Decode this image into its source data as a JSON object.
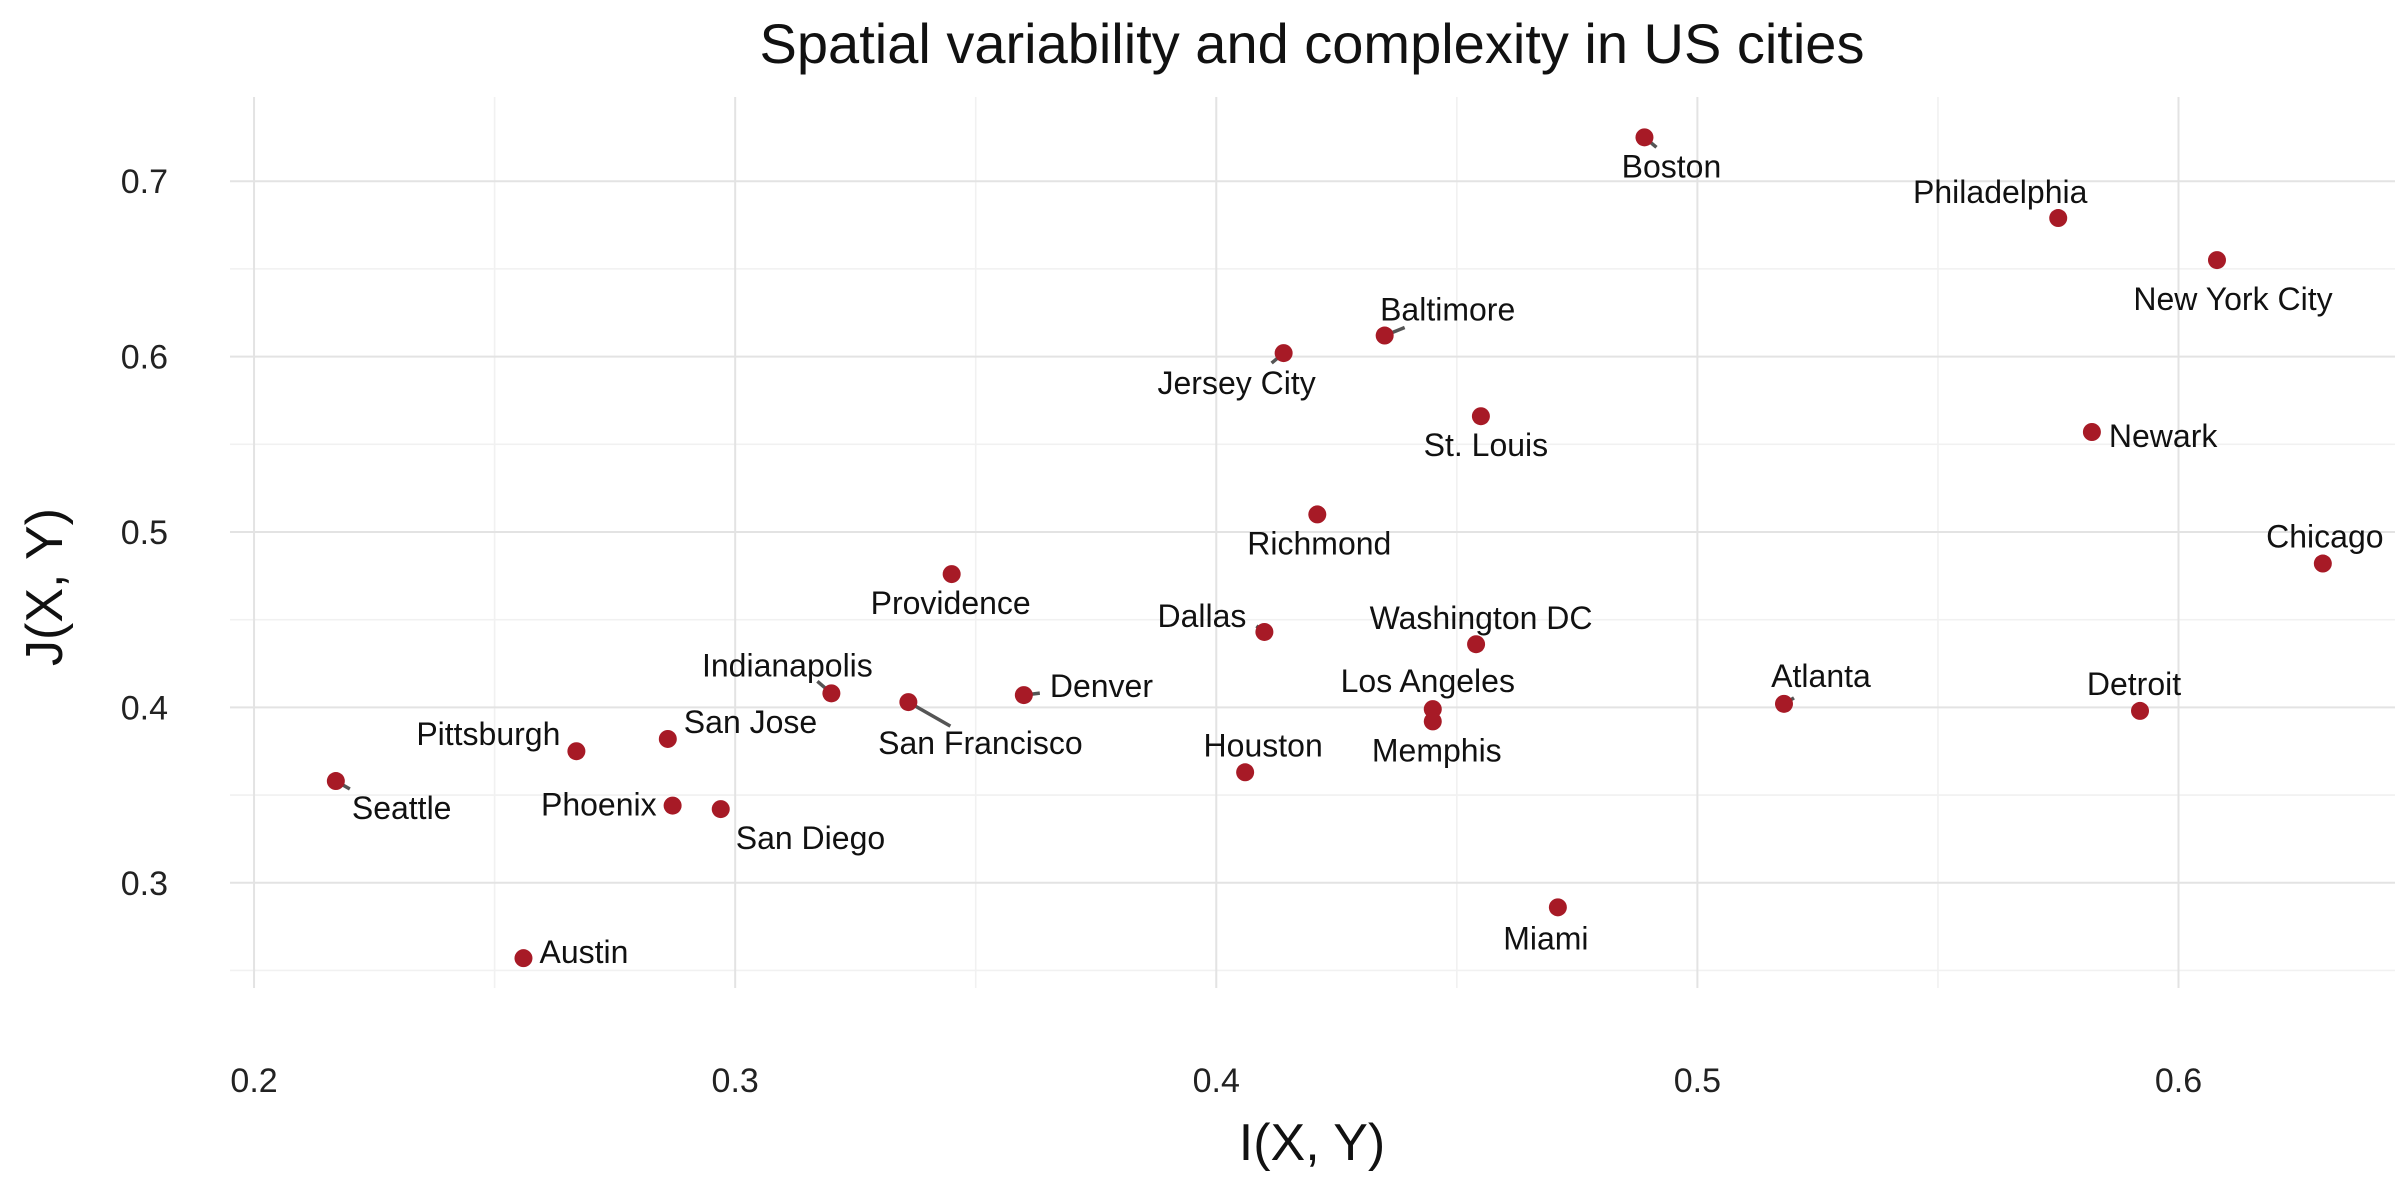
{
  "chart_data": {
    "type": "scatter",
    "title": "Spatial variability and complexity in US cities",
    "xlabel": "I(X, Y)",
    "ylabel": "J(X, Y)",
    "xlim": [
      0.195,
      0.645
    ],
    "ylim": [
      0.24,
      0.748
    ],
    "x_ticks": [
      0.2,
      0.3,
      0.4,
      0.5,
      0.6
    ],
    "x_tick_labels": [
      "0.2",
      "0.3",
      "0.4",
      "0.5",
      "0.6"
    ],
    "y_ticks": [
      0.3,
      0.4,
      0.5,
      0.6,
      0.7
    ],
    "y_tick_labels": [
      "0.3",
      "0.4",
      "0.5",
      "0.6",
      "0.7"
    ],
    "grid": true,
    "legend": "none",
    "point_color": "#a71a26",
    "points": [
      {
        "label": "Boston",
        "x": 0.489,
        "y": 0.725
      },
      {
        "label": "Philadelphia",
        "x": 0.575,
        "y": 0.679
      },
      {
        "label": "New York City",
        "x": 0.608,
        "y": 0.655
      },
      {
        "label": "Baltimore",
        "x": 0.435,
        "y": 0.612
      },
      {
        "label": "Jersey City",
        "x": 0.414,
        "y": 0.602
      },
      {
        "label": "St. Louis",
        "x": 0.455,
        "y": 0.566
      },
      {
        "label": "Newark",
        "x": 0.582,
        "y": 0.557
      },
      {
        "label": "Richmond",
        "x": 0.421,
        "y": 0.51
      },
      {
        "label": "Chicago",
        "x": 0.63,
        "y": 0.482
      },
      {
        "label": "Providence",
        "x": 0.345,
        "y": 0.476
      },
      {
        "label": "Dallas",
        "x": 0.41,
        "y": 0.443
      },
      {
        "label": "Washington DC",
        "x": 0.454,
        "y": 0.436
      },
      {
        "label": "Indianapolis",
        "x": 0.32,
        "y": 0.408
      },
      {
        "label": "Denver",
        "x": 0.36,
        "y": 0.407
      },
      {
        "label": "San Francisco",
        "x": 0.336,
        "y": 0.403
      },
      {
        "label": "Atlanta",
        "x": 0.518,
        "y": 0.402
      },
      {
        "label": "Los Angeles",
        "x": 0.445,
        "y": 0.399
      },
      {
        "label": "Detroit",
        "x": 0.592,
        "y": 0.398
      },
      {
        "label": "Memphis",
        "x": 0.445,
        "y": 0.392
      },
      {
        "label": "San Jose",
        "x": 0.286,
        "y": 0.382
      },
      {
        "label": "Pittsburgh",
        "x": 0.267,
        "y": 0.375
      },
      {
        "label": "Houston",
        "x": 0.406,
        "y": 0.363
      },
      {
        "label": "Seattle",
        "x": 0.217,
        "y": 0.358
      },
      {
        "label": "Phoenix",
        "x": 0.287,
        "y": 0.344
      },
      {
        "label": "San Diego",
        "x": 0.297,
        "y": 0.342
      },
      {
        "label": "Miami",
        "x": 0.471,
        "y": 0.286
      },
      {
        "label": "Austin",
        "x": 0.256,
        "y": 0.257
      }
    ]
  }
}
